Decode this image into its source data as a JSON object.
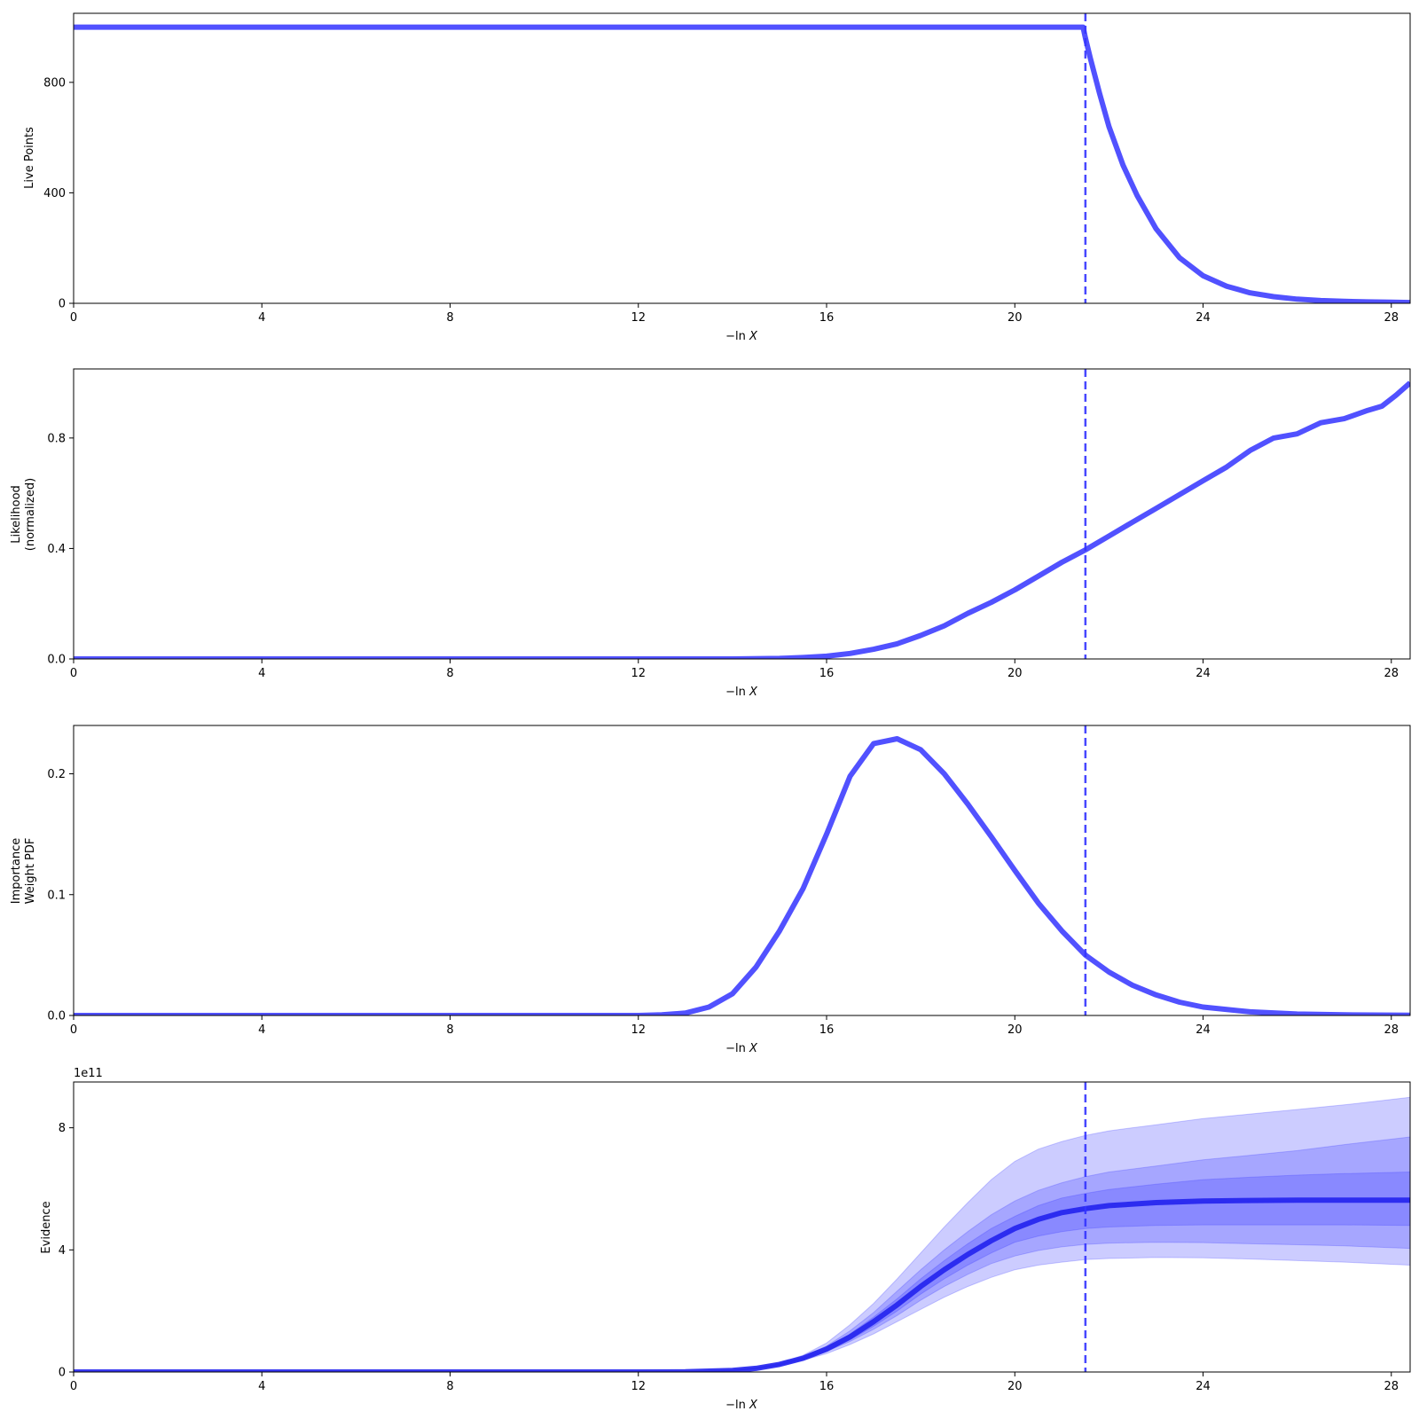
{
  "colors": {
    "line": "#3333ff",
    "median": "#2222ee",
    "band": "#3333ff",
    "axis": "#000000",
    "background": "#ffffff"
  },
  "chart_data": [
    {
      "type": "line",
      "id": "live-points",
      "xlabel_prefix": "−ln",
      "xlabel_var": "X",
      "ylabel": [
        "Live Points"
      ],
      "xlim": [
        0,
        28.4
      ],
      "ylim": [
        0,
        1050
      ],
      "xticks": [
        0,
        4,
        8,
        12,
        16,
        20,
        24,
        28
      ],
      "xticklabels": [
        "0",
        "4",
        "8",
        "12",
        "16",
        "20",
        "24",
        "28"
      ],
      "yticks": [
        0,
        400,
        800
      ],
      "yticklabels": [
        "0",
        "400",
        "800"
      ],
      "marker_x": 21.5,
      "series": [
        {
          "x": [
            0,
            21.45,
            21.5,
            21.6,
            21.8,
            22.0,
            22.3,
            22.6,
            23.0,
            23.5,
            24.0,
            24.5,
            25.0,
            25.5,
            26.0,
            26.5,
            27.0,
            27.5,
            28.0,
            28.4
          ],
          "y": [
            1000,
            1000,
            960,
            890,
            760,
            640,
            500,
            390,
            270,
            165,
            100,
            62,
            38,
            24,
            15,
            10,
            7,
            5,
            4,
            3
          ]
        }
      ]
    },
    {
      "type": "line",
      "id": "likelihood",
      "xlabel_prefix": "−ln",
      "xlabel_var": "X",
      "ylabel": [
        "Likelihood",
        "(normalized)"
      ],
      "xlim": [
        0,
        28.4
      ],
      "ylim": [
        0,
        1.05
      ],
      "xticks": [
        0,
        4,
        8,
        12,
        16,
        20,
        24,
        28
      ],
      "xticklabels": [
        "0",
        "4",
        "8",
        "12",
        "16",
        "20",
        "24",
        "28"
      ],
      "yticks": [
        0,
        0.4,
        0.8
      ],
      "yticklabels": [
        "0.0",
        "0.4",
        "0.8"
      ],
      "marker_x": 21.5,
      "series": [
        {
          "x": [
            0,
            14,
            15,
            15.5,
            16,
            16.5,
            17,
            17.5,
            18,
            18.5,
            19,
            19.5,
            20,
            20.5,
            21,
            21.5,
            22,
            22.5,
            23,
            23.5,
            24,
            24.5,
            25,
            25.5,
            26,
            26.5,
            27,
            27.5,
            27.8,
            28.1,
            28.4
          ],
          "y": [
            0,
            0.0,
            0.002,
            0.005,
            0.01,
            0.02,
            0.035,
            0.055,
            0.085,
            0.12,
            0.165,
            0.205,
            0.25,
            0.3,
            0.35,
            0.395,
            0.445,
            0.495,
            0.545,
            0.595,
            0.645,
            0.695,
            0.755,
            0.8,
            0.815,
            0.855,
            0.87,
            0.9,
            0.915,
            0.955,
            1.0
          ]
        }
      ]
    },
    {
      "type": "line",
      "id": "importance-weight",
      "xlabel_prefix": "−ln",
      "xlabel_var": "X",
      "ylabel": [
        "Importance",
        "Weight PDF"
      ],
      "xlim": [
        0,
        28.4
      ],
      "ylim": [
        0,
        0.24
      ],
      "xticks": [
        0,
        4,
        8,
        12,
        16,
        20,
        24,
        28
      ],
      "xticklabels": [
        "0",
        "4",
        "8",
        "12",
        "16",
        "20",
        "24",
        "28"
      ],
      "yticks": [
        0,
        0.1,
        0.2
      ],
      "yticklabels": [
        "0.0",
        "0.1",
        "0.2"
      ],
      "marker_x": 21.5,
      "series": [
        {
          "x": [
            0,
            12,
            12.5,
            13,
            13.5,
            14,
            14.5,
            15,
            15.5,
            16,
            16.5,
            17,
            17.5,
            18,
            18.5,
            19,
            19.5,
            20,
            20.5,
            21,
            21.5,
            22,
            22.5,
            23,
            23.5,
            24,
            25,
            26,
            27,
            28.4
          ],
          "y": [
            0,
            0.0,
            0.0005,
            0.002,
            0.007,
            0.018,
            0.04,
            0.07,
            0.105,
            0.15,
            0.198,
            0.225,
            0.229,
            0.22,
            0.2,
            0.175,
            0.148,
            0.12,
            0.093,
            0.07,
            0.05,
            0.036,
            0.025,
            0.017,
            0.011,
            0.007,
            0.003,
            0.0012,
            0.0005,
            0.0002
          ]
        }
      ]
    },
    {
      "type": "area",
      "id": "evidence",
      "xlabel_prefix": "−ln",
      "xlabel_var": "X",
      "ylabel": [
        "Evidence"
      ],
      "offset_label": "1e11",
      "xlim": [
        0,
        28.4
      ],
      "ylim": [
        0,
        9.5
      ],
      "xticks": [
        0,
        4,
        8,
        12,
        16,
        20,
        24,
        28
      ],
      "xticklabels": [
        "0",
        "4",
        "8",
        "12",
        "16",
        "20",
        "24",
        "28"
      ],
      "yticks": [
        0,
        4,
        8
      ],
      "yticklabels": [
        "0",
        "4",
        "8"
      ],
      "marker_x": 21.5,
      "x": [
        0,
        12,
        13,
        14,
        14.5,
        15,
        15.5,
        16,
        16.5,
        17,
        17.5,
        18,
        18.5,
        19,
        19.5,
        20,
        20.5,
        21,
        21.5,
        22,
        23,
        24,
        25,
        26,
        27,
        28.4
      ],
      "median": [
        0,
        0,
        0.005,
        0.05,
        0.12,
        0.25,
        0.45,
        0.75,
        1.15,
        1.65,
        2.2,
        2.8,
        3.35,
        3.85,
        4.3,
        4.7,
        5.0,
        5.22,
        5.35,
        5.45,
        5.55,
        5.6,
        5.62,
        5.63,
        5.63,
        5.63
      ],
      "bands": [
        {
          "upper": [
            0,
            0,
            0.005,
            0.06,
            0.15,
            0.3,
            0.55,
            0.95,
            1.55,
            2.25,
            3.05,
            3.9,
            4.75,
            5.55,
            6.3,
            6.9,
            7.3,
            7.55,
            7.75,
            7.9,
            8.1,
            8.3,
            8.45,
            8.6,
            8.75,
            9.0
          ],
          "lower": [
            0,
            0,
            0.004,
            0.04,
            0.1,
            0.2,
            0.38,
            0.6,
            0.9,
            1.25,
            1.65,
            2.05,
            2.45,
            2.8,
            3.1,
            3.35,
            3.5,
            3.6,
            3.68,
            3.72,
            3.75,
            3.74,
            3.7,
            3.65,
            3.6,
            3.5
          ]
        },
        {
          "upper": [
            0,
            0,
            0.005,
            0.055,
            0.13,
            0.27,
            0.5,
            0.85,
            1.35,
            1.95,
            2.65,
            3.35,
            4.0,
            4.6,
            5.15,
            5.6,
            5.95,
            6.2,
            6.4,
            6.55,
            6.75,
            6.95,
            7.1,
            7.25,
            7.45,
            7.7
          ],
          "lower": [
            0,
            0,
            0.004,
            0.045,
            0.11,
            0.22,
            0.41,
            0.67,
            1.0,
            1.4,
            1.85,
            2.35,
            2.8,
            3.2,
            3.55,
            3.8,
            3.98,
            4.1,
            4.18,
            4.22,
            4.25,
            4.24,
            4.2,
            4.17,
            4.13,
            4.05
          ]
        },
        {
          "upper": [
            0,
            0,
            0.005,
            0.052,
            0.125,
            0.26,
            0.47,
            0.8,
            1.25,
            1.8,
            2.4,
            3.05,
            3.65,
            4.2,
            4.7,
            5.1,
            5.45,
            5.7,
            5.85,
            5.98,
            6.15,
            6.3,
            6.38,
            6.45,
            6.5,
            6.55
          ],
          "lower": [
            0,
            0,
            0.004,
            0.048,
            0.115,
            0.24,
            0.43,
            0.7,
            1.05,
            1.5,
            2.0,
            2.55,
            3.05,
            3.5,
            3.9,
            4.25,
            4.45,
            4.6,
            4.7,
            4.75,
            4.8,
            4.82,
            4.82,
            4.82,
            4.82,
            4.8
          ]
        }
      ]
    }
  ]
}
